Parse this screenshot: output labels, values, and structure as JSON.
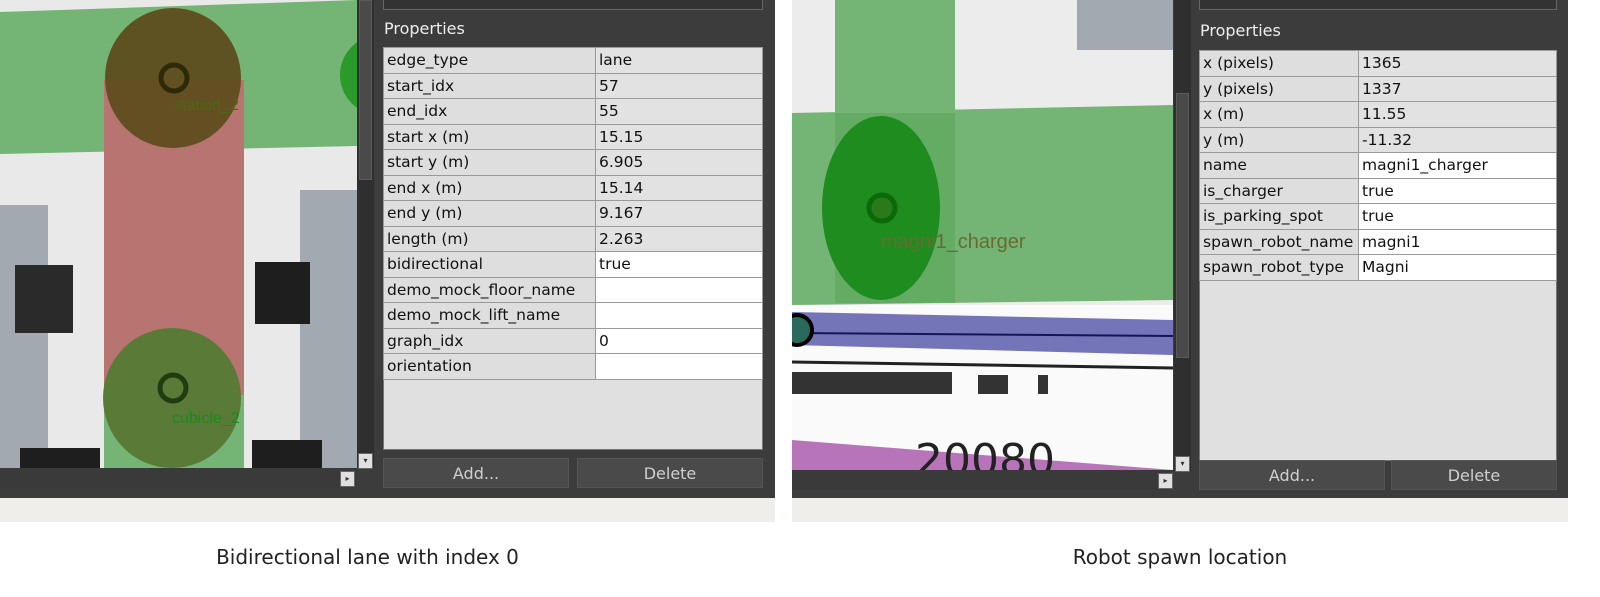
{
  "left": {
    "canvas_labels": {
      "station": "station_2",
      "cubicle": "cubicle_2"
    },
    "properties_title": "Properties",
    "rows": [
      {
        "key": "edge_type",
        "value": "lane",
        "editable": false
      },
      {
        "key": "start_idx",
        "value": "57",
        "editable": false
      },
      {
        "key": "end_idx",
        "value": "55",
        "editable": false
      },
      {
        "key": "start x (m)",
        "value": "15.15",
        "editable": false
      },
      {
        "key": "start y (m)",
        "value": "6.905",
        "editable": false
      },
      {
        "key": "end x (m)",
        "value": "15.14",
        "editable": false
      },
      {
        "key": "end y (m)",
        "value": "9.167",
        "editable": false
      },
      {
        "key": "length (m)",
        "value": "2.263",
        "editable": false
      },
      {
        "key": "bidirectional",
        "value": "true",
        "editable": true
      },
      {
        "key": "demo_mock_floor_name",
        "value": "",
        "editable": true
      },
      {
        "key": "demo_mock_lift_name",
        "value": "",
        "editable": true
      },
      {
        "key": "graph_idx",
        "value": "0",
        "editable": true
      },
      {
        "key": "orientation",
        "value": "",
        "editable": true
      }
    ],
    "add_label": "Add...",
    "delete_label": "Delete",
    "caption": "Bidirectional lane with index 0"
  },
  "right": {
    "canvas_labels": {
      "vertex": "magni1_charger",
      "floor_text": "20080"
    },
    "properties_title": "Properties",
    "rows": [
      {
        "key": "x (pixels)",
        "value": "1365",
        "editable": false
      },
      {
        "key": "y (pixels)",
        "value": "1337",
        "editable": false
      },
      {
        "key": "x (m)",
        "value": "11.55",
        "editable": false
      },
      {
        "key": "y (m)",
        "value": "-11.32",
        "editable": false
      },
      {
        "key": "name",
        "value": "magni1_charger",
        "editable": true
      },
      {
        "key": "is_charger",
        "value": "true",
        "editable": true
      },
      {
        "key": "is_parking_spot",
        "value": "true",
        "editable": true
      },
      {
        "key": "spawn_robot_name",
        "value": "magni1",
        "editable": true
      },
      {
        "key": "spawn_robot_type",
        "value": "Magni",
        "editable": true
      }
    ],
    "add_label": "Add...",
    "delete_label": "Delete",
    "caption": "Robot spawn location"
  },
  "colors": {
    "lane": "#b87470",
    "vertex_zone": "#74b474",
    "charger": "#1e8c1e",
    "panel": "#3c3c3c"
  }
}
